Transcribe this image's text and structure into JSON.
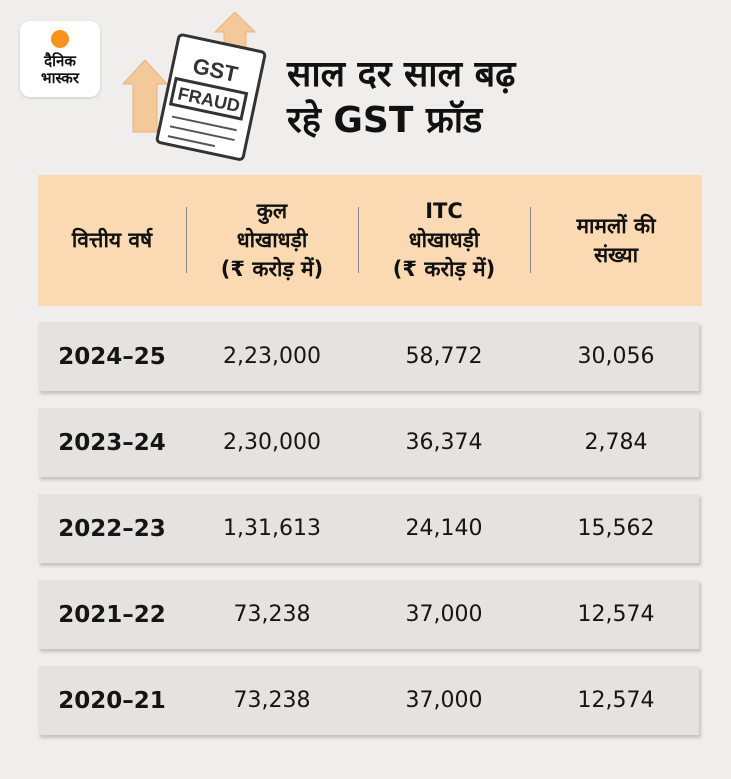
{
  "brand": {
    "line1": "दैनिक",
    "line2": "भास्कर",
    "accent": "#f7941d"
  },
  "illustration": {
    "icon": "gst-fraud-document-with-rising-arrows",
    "doc_text1": "GST",
    "doc_text2": "FRAUD"
  },
  "headline": {
    "line1": "साल दर साल बढ़",
    "line2": "रहे GST फ्रॉड"
  },
  "colors": {
    "header_bg": "#fbd9b2",
    "row_bg": "#e4e3e1",
    "page_bg": "#efeeec"
  },
  "chart_data": {
    "type": "table",
    "columns": [
      "वित्तीय वर्ष",
      "कुल\nधोखाधड़ी\n(₹ करोड़ में)",
      "ITC\nधोखाधड़ी\n(₹ करोड़ में)",
      "मामलों की\nसंख्या"
    ],
    "rows": [
      [
        "2024–25",
        "2,23,000",
        "58,772",
        "30,056"
      ],
      [
        "2023–24",
        "2,30,000",
        "36,374",
        "2,784"
      ],
      [
        "2022–23",
        "1,31,613",
        "24,140",
        "15,562"
      ],
      [
        "2021–22",
        "73,238",
        "37,000",
        "12,574"
      ],
      [
        "2020–21",
        "73,238",
        "37,000",
        "12,574"
      ]
    ]
  }
}
